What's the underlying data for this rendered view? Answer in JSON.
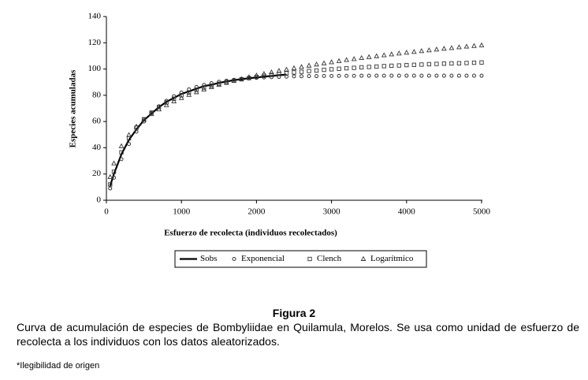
{
  "chart_data": {
    "type": "scatter",
    "xlabel": "Esfuerzo de recolecta (individuos recolectados)",
    "ylabel": "Especies acumuladas",
    "x": [
      50,
      100,
      200,
      300,
      400,
      500,
      600,
      700,
      800,
      900,
      1000,
      1100,
      1200,
      1300,
      1400,
      1500,
      1600,
      1700,
      1800,
      1900,
      2000,
      2100,
      2200,
      2300,
      2400,
      2500,
      2600,
      2700,
      2800,
      2900,
      3000,
      3100,
      3200,
      3300,
      3400,
      3500,
      3600,
      3700,
      3800,
      3900,
      4000,
      4100,
      4200,
      4300,
      4400,
      4500,
      4600,
      4700,
      4800,
      4900,
      5000
    ],
    "series": [
      {
        "name": "Sobs",
        "marker": "line",
        "color": "#000000",
        "values": [
          11,
          20,
          35,
          46,
          54,
          61,
          66,
          71,
          75,
          78,
          81,
          83,
          85,
          87,
          88,
          89.5,
          90.5,
          91.5,
          92.3,
          93,
          93.6,
          94.2,
          94.7,
          95.3,
          95.8,
          null,
          null,
          null,
          null,
          null,
          null,
          null,
          null,
          null,
          null,
          null,
          null,
          null,
          null,
          null,
          null,
          null,
          null,
          null,
          null,
          null,
          null,
          null,
          null,
          null,
          null
        ]
      },
      {
        "name": "Exponencial",
        "marker": "circle",
        "color": "#333333",
        "values": [
          9.0,
          17.2,
          31.3,
          42.9,
          52.3,
          60.0,
          66.4,
          71.6,
          75.8,
          79.3,
          82.1,
          84.5,
          86.4,
          87.9,
          89.2,
          90.3,
          91.1,
          91.8,
          92.4,
          92.9,
          93.3,
          93.6,
          93.8,
          94.0,
          94.2,
          94.4,
          94.5,
          94.6,
          94.6,
          94.7,
          94.7,
          94.8,
          94.8,
          94.8,
          94.9,
          94.9,
          94.9,
          94.9,
          94.9,
          94.9,
          94.9,
          94.9,
          94.9,
          94.9,
          94.9,
          94.9,
          94.9,
          94.9,
          94.9,
          94.9,
          94.9
        ]
      },
      {
        "name": "Clench",
        "marker": "square",
        "color": "#333333",
        "values": [
          12.0,
          21.7,
          36.5,
          47.2,
          55.3,
          61.7,
          66.8,
          71.0,
          74.5,
          77.4,
          80.0,
          82.2,
          84.2,
          85.9,
          87.4,
          88.8,
          90.1,
          91.2,
          92.2,
          93.1,
          94.0,
          94.8,
          95.5,
          96.2,
          96.8,
          97.4,
          97.9,
          98.5,
          98.9,
          99.4,
          99.8,
          100.2,
          100.6,
          100.9,
          101.3,
          101.6,
          101.9,
          102.2,
          102.5,
          102.7,
          103.0,
          103.2,
          103.4,
          103.7,
          103.9,
          104.1,
          104.3,
          104.4,
          104.6,
          104.8,
          105.0
        ]
      },
      {
        "name": "Logarítmico",
        "marker": "triangle",
        "color": "#333333",
        "values": [
          17.7,
          28.1,
          41.2,
          49.8,
          56.2,
          61.4,
          65.7,
          69.3,
          72.5,
          75.4,
          77.9,
          80.3,
          82.4,
          84.4,
          86.2,
          87.9,
          89.5,
          91.0,
          92.4,
          93.8,
          95.1,
          96.3,
          97.5,
          98.6,
          99.6,
          100.7,
          101.6,
          102.6,
          103.5,
          104.4,
          105.2,
          106.1,
          106.9,
          107.6,
          108.4,
          109.1,
          109.8,
          110.5,
          111.2,
          111.9,
          112.5,
          113.1,
          113.7,
          114.3,
          114.9,
          115.5,
          116.0,
          116.6,
          117.1,
          117.6,
          118.1
        ]
      }
    ],
    "xlim": [
      0,
      5000
    ],
    "xticks": [
      0,
      1000,
      2000,
      3000,
      4000,
      5000
    ],
    "ylim": [
      0,
      140
    ],
    "yticks": [
      0,
      20,
      40,
      60,
      80,
      100,
      120,
      140
    ],
    "grid": false,
    "legend": "bottom"
  },
  "caption": {
    "figure": "Figura 2",
    "text": "Curva de acumulación de especies de Bombyliidae en Quilamula, Morelos. Se usa como unidad de esfuerzo de recolecta a los individuos con los datos aleatorizados.",
    "note": "*Ilegibilidad de origen"
  }
}
